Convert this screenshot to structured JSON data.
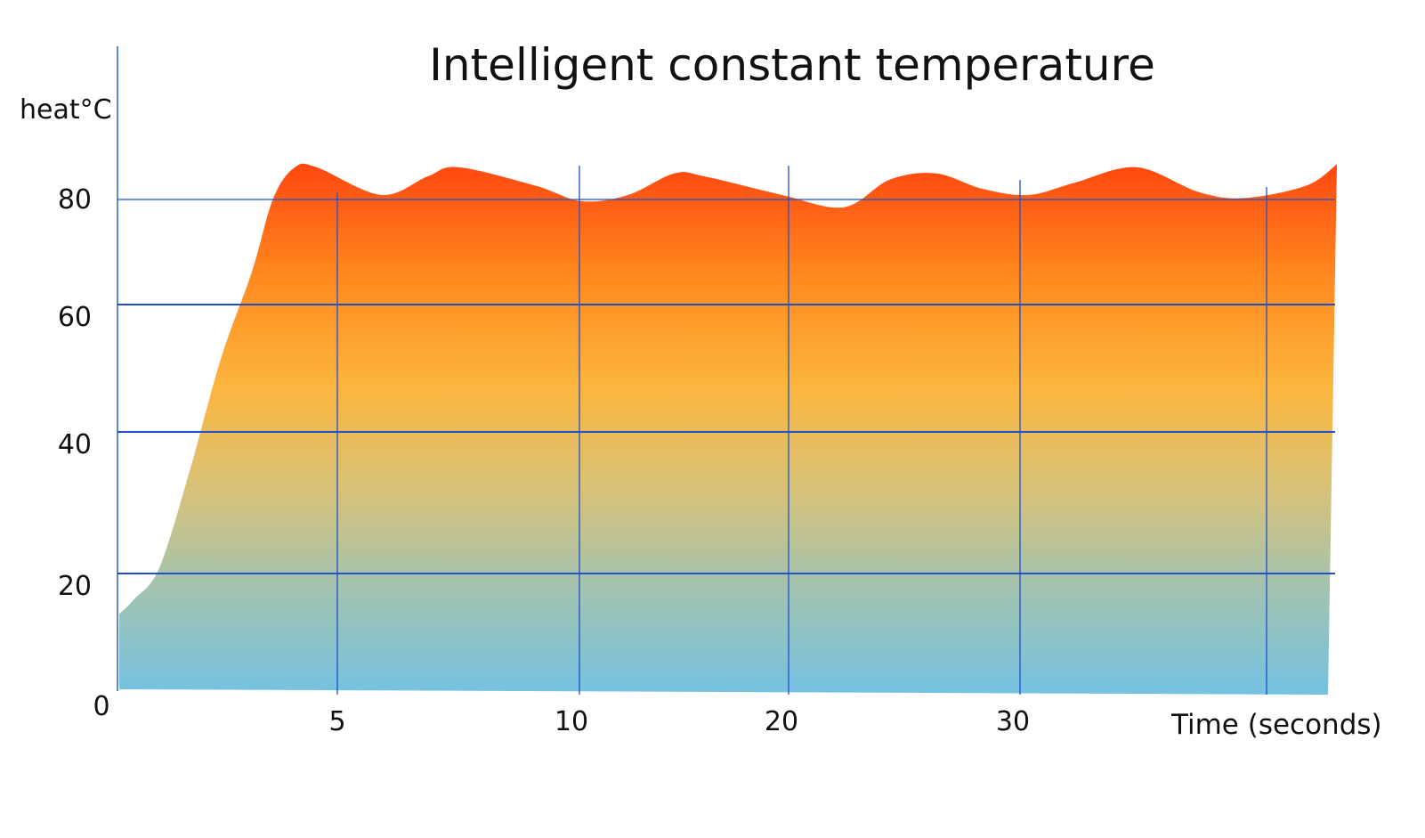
{
  "chart_data": {
    "type": "area",
    "title": "Intelligent constant temperature",
    "ylabel": "heat°C",
    "xlabel": "Time (seconds)",
    "origin_label": "0",
    "y_ticks": [
      20,
      40,
      60,
      80
    ],
    "x_ticks": [
      "5",
      "10",
      "20",
      "30"
    ],
    "grid": true,
    "colors": {
      "grid": "#1f4fc9",
      "axis": "#1f4fc9",
      "gradient_top": "#ff4510",
      "gradient_mid": "#fcb53d",
      "gradient_bottom": "#74c2e2"
    },
    "series": [
      {
        "x": [
          0,
          0.5,
          1.3,
          2.3,
          3.3,
          4.3,
          5,
          5.7,
          6.4,
          8.5,
          10,
          11,
          13.5,
          15,
          16.5,
          18,
          19,
          21.5,
          23.5,
          25,
          26.5,
          28,
          29.5,
          31,
          33,
          35,
          36.5,
          38.5,
          39.5
        ],
        "y": [
          12.5,
          15,
          20,
          36,
          54,
          68,
          80,
          85,
          85,
          80.5,
          83.5,
          85,
          82,
          79.5,
          80.5,
          84,
          83.5,
          80.5,
          78.5,
          83,
          84,
          81.5,
          80.5,
          82.5,
          85,
          81,
          80,
          82,
          85.5
        ]
      }
    ]
  }
}
